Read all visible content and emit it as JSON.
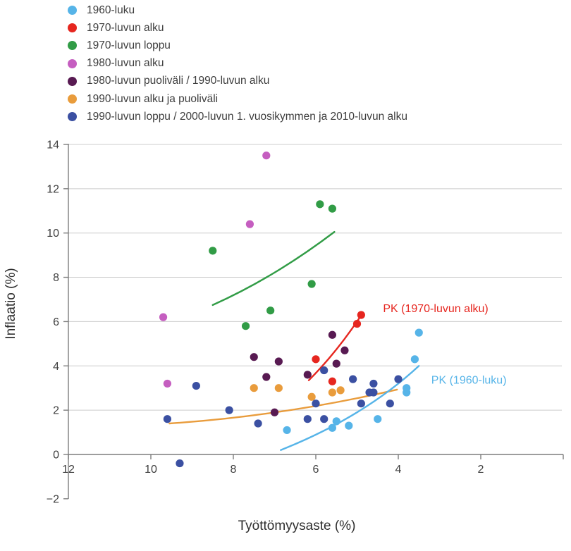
{
  "page": {
    "background": "#ffffff"
  },
  "chart_data": {
    "type": "scatter",
    "title": "",
    "xlabel": "Työttömyysaste (%)",
    "ylabel": "Inflaatio (%)",
    "legend_position": "top-left",
    "x_axis": {
      "reversed": true,
      "range_shown": [
        12,
        0
      ],
      "ticks": [
        {
          "value": 12,
          "label": "12"
        },
        {
          "value": 10,
          "label": "10"
        },
        {
          "value": 8,
          "label": "8"
        },
        {
          "value": 6,
          "label": "6"
        },
        {
          "value": 4,
          "label": "4"
        },
        {
          "value": 2,
          "label": "2"
        },
        {
          "value": 0,
          "label": ""
        }
      ]
    },
    "y_axis": {
      "range": [
        -2,
        14
      ],
      "gridlines": [
        2,
        4,
        6,
        8,
        10,
        12,
        14
      ],
      "ticks": [
        {
          "value": 14,
          "label": "14"
        },
        {
          "value": 12,
          "label": "12"
        },
        {
          "value": 10,
          "label": "10"
        },
        {
          "value": 8,
          "label": "8"
        },
        {
          "value": 6,
          "label": "6"
        },
        {
          "value": 4,
          "label": "4"
        },
        {
          "value": 2,
          "label": "2"
        },
        {
          "value": 0,
          "label": "0"
        },
        {
          "value": -2,
          "label": "−2"
        }
      ]
    },
    "series": [
      {
        "name": "1960-luku",
        "color": "#56b4e8",
        "points": [
          [
            6.7,
            1.1
          ],
          [
            5.6,
            1.2
          ],
          [
            5.2,
            1.3
          ],
          [
            5.5,
            1.5
          ],
          [
            4.5,
            1.6
          ],
          [
            3.8,
            2.8
          ],
          [
            3.8,
            3.0
          ],
          [
            3.6,
            4.3
          ],
          [
            3.5,
            5.5
          ]
        ]
      },
      {
        "name": "1970-luvun alku",
        "color": "#e6261f",
        "points": [
          [
            6.0,
            4.3
          ],
          [
            5.6,
            3.3
          ],
          [
            5.0,
            5.9
          ],
          [
            4.9,
            6.3
          ]
        ]
      },
      {
        "name": "1970-luvun loppu",
        "color": "#319c46",
        "points": [
          [
            8.5,
            9.2
          ],
          [
            7.7,
            5.8
          ],
          [
            7.1,
            6.5
          ],
          [
            6.1,
            7.7
          ],
          [
            5.9,
            11.3
          ],
          [
            5.6,
            11.1
          ]
        ]
      },
      {
        "name": "1980-luvun alku",
        "color": "#c55ec0",
        "points": [
          [
            9.7,
            6.2
          ],
          [
            9.6,
            3.2
          ],
          [
            7.6,
            10.4
          ],
          [
            7.2,
            13.5
          ]
        ]
      },
      {
        "name": "1980-luvun puoliväli / 1990-luvun alku",
        "color": "#581a52",
        "points": [
          [
            7.5,
            4.4
          ],
          [
            7.2,
            3.5
          ],
          [
            7.0,
            1.9
          ],
          [
            6.9,
            4.2
          ],
          [
            6.2,
            3.6
          ],
          [
            5.6,
            5.4
          ],
          [
            5.5,
            4.1
          ],
          [
            5.3,
            4.7
          ]
        ]
      },
      {
        "name": "1990-luvun alku ja puoliväli",
        "color": "#e99c3c",
        "points": [
          [
            7.5,
            3.0
          ],
          [
            6.9,
            3.0
          ],
          [
            6.1,
            2.6
          ],
          [
            5.6,
            2.8
          ],
          [
            5.4,
            2.9
          ]
        ]
      },
      {
        "name": "1990-luvun loppu / 2000-luvun 1. vuosikymmen ja 2010-luvun alku",
        "color": "#3b50a2",
        "points": [
          [
            9.6,
            1.6
          ],
          [
            9.3,
            -0.4
          ],
          [
            8.9,
            3.1
          ],
          [
            8.1,
            2.0
          ],
          [
            7.4,
            1.4
          ],
          [
            6.2,
            1.6
          ],
          [
            6.0,
            2.3
          ],
          [
            5.8,
            1.6
          ],
          [
            5.8,
            3.8
          ],
          [
            5.1,
            3.4
          ],
          [
            4.9,
            2.3
          ],
          [
            4.7,
            2.8
          ],
          [
            4.6,
            2.8
          ],
          [
            4.6,
            3.2
          ],
          [
            4.2,
            2.3
          ],
          [
            4.0,
            3.4
          ]
        ]
      }
    ],
    "trend_lines": [
      {
        "series": "1970-luvun loppu",
        "color": "#319c46",
        "start": [
          8.5,
          6.75
        ],
        "control": [
          7.0,
          8.0
        ],
        "end": [
          5.55,
          10.05
        ],
        "label": ""
      },
      {
        "series": "1970-luvun alku",
        "color": "#e6261f",
        "start": [
          6.17,
          3.35
        ],
        "control": [
          5.5,
          4.6
        ],
        "end": [
          4.93,
          6.2
        ],
        "label": "PK (1970-luvun alku)",
        "label_pos": [
          4.37,
          6.42
        ],
        "label_align": "start"
      },
      {
        "series": "1990-luvun alku ja puoliväli",
        "color": "#e99c3c",
        "start": [
          9.55,
          1.4
        ],
        "control": [
          6.8,
          1.74
        ],
        "end": [
          4.03,
          2.93
        ],
        "label": ""
      },
      {
        "series": "1960-luku",
        "color": "#56b4e8",
        "start": [
          6.85,
          0.2
        ],
        "control": [
          4.83,
          1.7
        ],
        "end": [
          3.5,
          4.0
        ],
        "label": "PK (1960-luku)",
        "label_pos": [
          3.2,
          3.2
        ],
        "label_align": "start"
      }
    ]
  }
}
